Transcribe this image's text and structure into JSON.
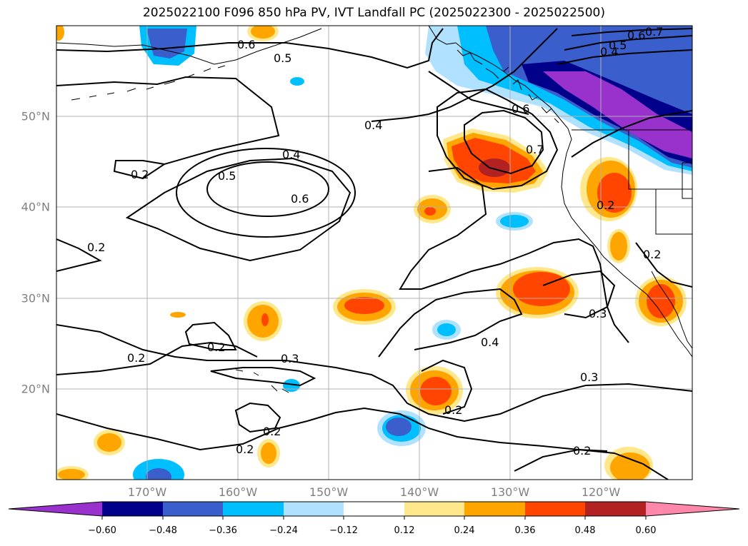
{
  "title": "2025022100 F096 850 hPa PV, IVT Landfall PC (2025022300 - 2025022500)",
  "lat_ticks": [
    "20°N",
    "30°N",
    "40°N",
    "50°N"
  ],
  "lon_ticks": [
    "170°W",
    "160°W",
    "150°W",
    "140°W",
    "130°W",
    "120°W"
  ],
  "colorbar": {
    "ticks": [
      "−0.60",
      "−0.48",
      "−0.36",
      "−0.24",
      "−0.12",
      "0.12",
      "0.24",
      "0.36",
      "0.48",
      "0.60"
    ],
    "colors": [
      "#9932CC",
      "#00008B",
      "#3A5FCD",
      "#00BFFF",
      "#B0E2FF",
      "#FFFFFF",
      "#FFE88C",
      "#FFA500",
      "#FF4500",
      "#B22222",
      "#FF88AA"
    ]
  },
  "contour_labels": [
    "0.6",
    "0.5",
    "0.4",
    "0.4",
    "0.5",
    "0.6",
    "0.2",
    "0.2",
    "0.2",
    "0.2",
    "0.3",
    "0.2",
    "0.2",
    "0.2",
    "0.4",
    "0.3",
    "0.3",
    "0.2",
    "0.7",
    "0.6",
    "0.5",
    "0.4",
    "0.7",
    "0.6",
    "0.2",
    "0.2"
  ]
}
